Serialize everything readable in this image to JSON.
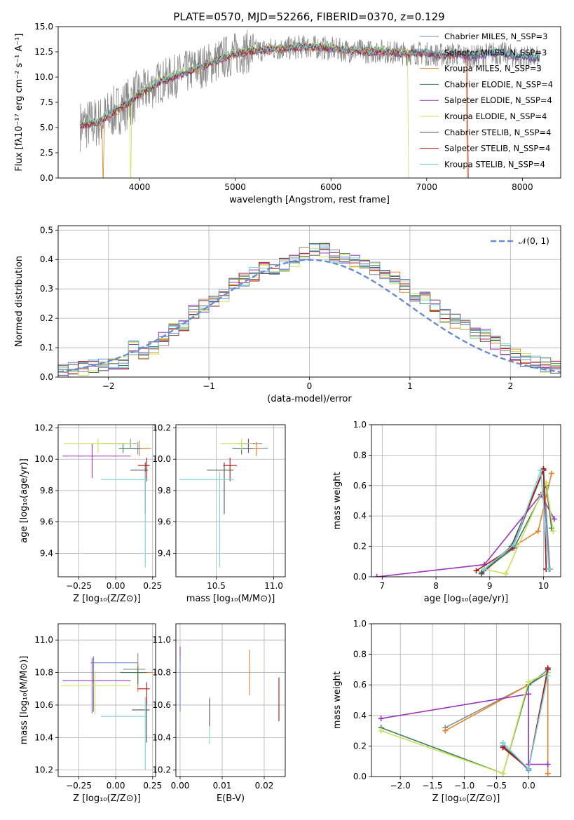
{
  "figure": {
    "title": "PLATE=0570, MJD=52266, FIBERID=0370, z=0.129"
  },
  "colors": [
    "#6a8bd3",
    "#8b8b8b",
    "#e0852b",
    "#3f7f5b",
    "#9b35b8",
    "#c8e35a",
    "#505050",
    "#b01717",
    "#79d4dc"
  ],
  "chart_data": [
    {
      "id": "spectrum",
      "type": "line",
      "title": "PLATE=0570, MJD=52266, FIBERID=0370, z=0.129",
      "xlabel": "wavelength [Angstrom, rest frame]",
      "ylabel": "Flux [fλ10⁻¹⁷ erg cm⁻² s⁻¹ A⁻¹]",
      "xlim": [
        3150,
        8400
      ],
      "ylim": [
        0,
        15
      ],
      "xticks": [
        4000,
        5000,
        6000,
        7000,
        8000
      ],
      "yticks": [
        0.0,
        2.5,
        5.0,
        7.5,
        10.0,
        12.5,
        15.0
      ],
      "grid": false,
      "legend_position": "right",
      "legend": [
        "Chabrier MILES, N_SSP=3",
        "Salpeter MILES, N_SSP=3",
        "Kroupa MILES, N_SSP=3",
        "Chabrier ELODIE, N_SSP=4",
        "Salpeter ELODIE, N_SSP=4",
        "Kroupa ELODIE, N_SSP=4",
        "Chabrier STELIB, N_SSP=4",
        "Salpeter STELIB, N_SSP=4",
        "Kroupa STELIB, N_SSP=4"
      ],
      "observed_envelope": {
        "x": [
          3380,
          3500,
          3600,
          3700,
          3800,
          3900,
          4000,
          4100,
          4200,
          4300,
          4400,
          4500,
          4600,
          4700,
          4800,
          4900,
          5000,
          5100,
          5200,
          5300,
          5400,
          5500,
          5600,
          5700,
          5800,
          5900,
          6000,
          6100,
          6200,
          6300,
          6400,
          6500,
          6600,
          6700,
          6800,
          6900,
          7000,
          7100,
          7200,
          7300,
          7400,
          7500,
          7600,
          7700,
          7800,
          7900,
          8000,
          8100,
          8180
        ],
        "y": [
          5.2,
          5.4,
          5.6,
          6.4,
          6.9,
          7.5,
          8.4,
          8.8,
          9.5,
          9.8,
          10.2,
          10.5,
          10.9,
          11.2,
          11.6,
          12.0,
          12.3,
          12.5,
          12.6,
          12.7,
          12.8,
          12.8,
          12.9,
          13.0,
          13.0,
          12.9,
          12.8,
          12.7,
          12.6,
          12.6,
          12.5,
          12.6,
          12.5,
          12.4,
          12.3,
          12.4,
          12.3,
          12.2,
          12.2,
          12.3,
          12.1,
          12.0,
          12.2,
          12.4,
          12.3,
          12.1,
          12.0,
          11.9,
          11.9
        ]
      }
    },
    {
      "id": "residuals",
      "type": "line",
      "xlabel": "(data-model)/error",
      "ylabel": "Normed distribution",
      "xlim": [
        -2.5,
        2.5
      ],
      "ylim": [
        0,
        0.515
      ],
      "xticks": [
        -2,
        -1,
        0,
        1,
        2
      ],
      "yticks": [
        0.0,
        0.1,
        0.2,
        0.3,
        0.4,
        0.5
      ],
      "grid": true,
      "legend_position": "top-right",
      "legend": [
        "𝒩(0, 1)"
      ],
      "bin_width": 0.1,
      "bin_start": -2.5,
      "bin_values": [
        0.02,
        0.025,
        0.03,
        0.04,
        0.045,
        0.05,
        0.05,
        0.1,
        0.08,
        0.1,
        0.13,
        0.16,
        0.18,
        0.22,
        0.24,
        0.26,
        0.28,
        0.32,
        0.33,
        0.35,
        0.37,
        0.36,
        0.38,
        0.39,
        0.42,
        0.43,
        0.43,
        0.41,
        0.4,
        0.39,
        0.38,
        0.37,
        0.35,
        0.34,
        0.31,
        0.27,
        0.27,
        0.24,
        0.21,
        0.19,
        0.18,
        0.15,
        0.14,
        0.12,
        0.1,
        0.08,
        0.06,
        0.05,
        0.04,
        0.035
      ]
    },
    {
      "id": "age-vs-Z",
      "type": "scatter",
      "xlabel": "Z [log₁₀(Z/Z⊙)]",
      "ylabel": "age  [log₁₀(age/yr)]",
      "xlim": [
        -0.39,
        0.27
      ],
      "ylim": [
        9.25,
        10.22
      ],
      "xticks": [
        -0.25,
        0.0,
        0.25
      ],
      "xtick_labels": [
        "−0.25",
        "0.00",
        "0.25"
      ],
      "yticks": [
        9.4,
        9.6,
        9.8,
        10.0,
        10.2
      ],
      "grid": true,
      "points": [
        {
          "x": 0.15,
          "y": 10.07,
          "xerr": [
            0.05,
            0.07
          ],
          "yerr": [
            0.04,
            0.04
          ],
          "color": 0
        },
        {
          "x": 0.1,
          "y": 10.1,
          "xerr": [
            0.2,
            0.04
          ],
          "yerr": [
            0.03,
            0.03
          ],
          "color": 1
        },
        {
          "x": 0.16,
          "y": 10.07,
          "xerr": [
            0.1,
            0.08
          ],
          "yerr": [
            0.05,
            0.05
          ],
          "color": 2
        },
        {
          "x": 0.05,
          "y": 10.07,
          "xerr": [
            0.03,
            0.12
          ],
          "yerr": [
            0.03,
            0.03
          ],
          "color": 3
        },
        {
          "x": -0.16,
          "y": 10.02,
          "xerr": [
            0.2,
            0.26
          ],
          "yerr": [
            0.14,
            0.08
          ],
          "color": 4
        },
        {
          "x": -0.12,
          "y": 10.1,
          "xerr": [
            0.23,
            0.24
          ],
          "yerr": [
            0.06,
            0.03
          ],
          "color": 5
        },
        {
          "x": 0.2,
          "y": 9.93,
          "xerr": [
            0.1,
            0.02
          ],
          "yerr": [
            0.28,
            0.05
          ],
          "color": 6
        },
        {
          "x": 0.21,
          "y": 9.96,
          "xerr": [
            0.06,
            0.02
          ],
          "yerr": [
            0.1,
            0.05
          ],
          "color": 7
        },
        {
          "x": 0.2,
          "y": 9.87,
          "xerr": [
            0.3,
            0.02
          ],
          "yerr": [
            0.56,
            0.05
          ],
          "color": 8
        }
      ]
    },
    {
      "id": "age-vs-mass",
      "type": "scatter",
      "xlabel": "mass [log₁₀(M/M⊙)]",
      "ylabel": "",
      "xlim": [
        10.15,
        11.1
      ],
      "ylim": [
        9.25,
        10.22
      ],
      "xticks": [
        10.5,
        11.0
      ],
      "yticks": [
        9.4,
        9.6,
        9.8,
        10.0,
        10.2
      ],
      "grid": true,
      "points": [
        {
          "x": 10.85,
          "y": 10.07,
          "xerr": [
            0.08,
            0.1
          ],
          "yerr": [
            0.04,
            0.04
          ],
          "color": 0
        },
        {
          "x": 10.78,
          "y": 10.1,
          "xerr": [
            0.1,
            0.12
          ],
          "yerr": [
            0.04,
            0.03
          ],
          "color": 1
        },
        {
          "x": 10.85,
          "y": 10.07,
          "xerr": [
            0.12,
            0.05
          ],
          "yerr": [
            0.05,
            0.04
          ],
          "color": 2
        },
        {
          "x": 10.72,
          "y": 10.07,
          "xerr": [
            0.08,
            0.1
          ],
          "yerr": [
            0.04,
            0.04
          ],
          "color": 3
        },
        {
          "x": 10.78,
          "y": 10.1,
          "xerr": [
            0.04,
            0.05
          ],
          "yerr": [
            0.06,
            0.03
          ],
          "color": 4
        },
        {
          "x": 10.72,
          "y": 10.1,
          "xerr": [
            0.18,
            0.1
          ],
          "yerr": [
            0.04,
            0.03
          ],
          "color": 5
        },
        {
          "x": 10.57,
          "y": 9.93,
          "xerr": [
            0.15,
            0.08
          ],
          "yerr": [
            0.28,
            0.05
          ],
          "color": 6
        },
        {
          "x": 10.62,
          "y": 9.96,
          "xerr": [
            0.06,
            0.06
          ],
          "yerr": [
            0.1,
            0.05
          ],
          "color": 7
        },
        {
          "x": 10.53,
          "y": 9.87,
          "xerr": [
            0.35,
            0.12
          ],
          "yerr": [
            0.56,
            0.05
          ],
          "color": 8
        }
      ]
    },
    {
      "id": "mass-weight-vs-age",
      "type": "line",
      "xlabel": "age  [log₁₀(age/yr)]",
      "ylabel": "mass weight",
      "xlim": [
        6.8,
        10.32
      ],
      "ylim": [
        0,
        1.0
      ],
      "xticks": [
        7,
        8,
        9,
        10
      ],
      "yticks": [
        0.0,
        0.2,
        0.4,
        0.6,
        0.8,
        1.0
      ],
      "grid": true,
      "series": [
        {
          "color": 0,
          "x": [
            8.9,
            9.4,
            10.0,
            10.1
          ],
          "y": [
            0.05,
            0.2,
            0.7,
            0.05
          ]
        },
        {
          "color": 1,
          "x": [
            8.9,
            9.45,
            10.0,
            10.12
          ],
          "y": [
            0.05,
            0.21,
            0.7,
            0.05
          ]
        },
        {
          "color": 2,
          "x": [
            8.85,
            9.45,
            9.9,
            10.15
          ],
          "y": [
            0.02,
            0.2,
            0.3,
            0.68
          ]
        },
        {
          "color": 3,
          "x": [
            8.85,
            9.45,
            10.05,
            10.15
          ],
          "y": [
            0.03,
            0.19,
            0.6,
            0.32
          ]
        },
        {
          "color": 4,
          "x": [
            6.9,
            8.9,
            9.95,
            10.2
          ],
          "y": [
            0.0,
            0.08,
            0.54,
            0.38
          ]
        },
        {
          "color": 5,
          "x": [
            8.9,
            9.3,
            10.05,
            10.18
          ],
          "y": [
            0.05,
            0.02,
            0.62,
            0.3
          ]
        },
        {
          "color": 6,
          "x": [
            8.85,
            9.4,
            10.0,
            10.05
          ],
          "y": [
            0.02,
            0.2,
            0.7,
            0.05
          ]
        },
        {
          "color": 7,
          "x": [
            8.75,
            9.42,
            10.0,
            10.05
          ],
          "y": [
            0.04,
            0.19,
            0.71,
            0.05
          ]
        },
        {
          "color": 8,
          "x": [
            8.9,
            9.45,
            9.95,
            10.1
          ],
          "y": [
            0.05,
            0.21,
            0.7,
            0.05
          ]
        }
      ]
    },
    {
      "id": "mass-vs-Z",
      "type": "scatter",
      "xlabel": "Z [log₁₀(Z/Z⊙)]",
      "ylabel": "mass [log₁₀(M/M⊙)]",
      "xlim": [
        -0.39,
        0.27
      ],
      "ylim": [
        10.16,
        11.1
      ],
      "xticks": [
        -0.25,
        0.0,
        0.25
      ],
      "xtick_labels": [
        "−0.25",
        "0.00",
        "0.25"
      ],
      "yticks": [
        10.2,
        10.4,
        10.6,
        10.8,
        11.0
      ],
      "grid": true,
      "points": [
        {
          "x": -0.15,
          "y": 10.86,
          "xerr": [
            0.02,
            0.3
          ],
          "yerr": [
            0.3,
            0.04
          ],
          "color": 0
        },
        {
          "x": 0.15,
          "y": 10.82,
          "xerr": [
            0.1,
            0.05
          ],
          "yerr": [
            0.1,
            0.1
          ],
          "color": 1
        },
        {
          "x": 0.15,
          "y": 10.8,
          "xerr": [
            0.04,
            0.1
          ],
          "yerr": [
            0.12,
            0.06
          ],
          "color": 2
        },
        {
          "x": 0.15,
          "y": 10.8,
          "xerr": [
            0.12,
            0.06
          ],
          "yerr": [
            0.07,
            0.04
          ],
          "color": 3
        },
        {
          "x": -0.16,
          "y": 10.75,
          "xerr": [
            0.2,
            0.26
          ],
          "yerr": [
            0.2,
            0.14
          ],
          "color": 4
        },
        {
          "x": -0.14,
          "y": 10.72,
          "xerr": [
            0.23,
            0.24
          ],
          "yerr": [
            0.18,
            0.09
          ],
          "color": 5
        },
        {
          "x": 0.21,
          "y": 10.57,
          "xerr": [
            0.1,
            0.02
          ],
          "yerr": [
            0.2,
            0.08
          ],
          "color": 6
        },
        {
          "x": 0.21,
          "y": 10.7,
          "xerr": [
            0.06,
            0.02
          ],
          "yerr": [
            0.1,
            0.04
          ],
          "color": 7
        },
        {
          "x": 0.2,
          "y": 10.53,
          "xerr": [
            0.3,
            0.01
          ],
          "yerr": [
            0.33,
            0.12
          ],
          "color": 8
        }
      ]
    },
    {
      "id": "mass-vs-EBV",
      "type": "scatter",
      "xlabel": "E(B-V)",
      "ylabel": "",
      "xlim": [
        -0.001,
        0.025
      ],
      "ylim": [
        10.16,
        11.1
      ],
      "xticks": [
        0.0,
        0.01,
        0.02
      ],
      "yticks": [
        10.2,
        10.4,
        10.6,
        10.8,
        11.0
      ],
      "grid": true,
      "points": [
        {
          "x": 0.0,
          "y": 10.88,
          "yerr": [
            0.02,
            0.08
          ],
          "color": 4
        },
        {
          "x": 0.0,
          "y": 10.75,
          "yerr": [
            0.2,
            0.15
          ],
          "color": 5
        },
        {
          "x": 0.0,
          "y": 10.86,
          "yerr": [
            0.3,
            0.04
          ],
          "color": 0
        },
        {
          "x": 0.007,
          "y": 10.53,
          "yerr": [
            0.17,
            0.12
          ],
          "color": 8
        },
        {
          "x": 0.007,
          "y": 10.57,
          "yerr": [
            0.1,
            0.07
          ],
          "color": 6
        },
        {
          "x": 0.0165,
          "y": 10.8,
          "yerr": [
            0.14,
            0.14
          ],
          "color": 2
        },
        {
          "x": 0.0235,
          "y": 10.64,
          "yerr": [
            0.14,
            0.13
          ],
          "color": 7
        }
      ]
    },
    {
      "id": "mass-weight-vs-Z",
      "type": "line",
      "xlabel": "Z [log₁₀(Z/Z⊙)]",
      "ylabel": "mass weight",
      "xlim": [
        -2.45,
        0.5
      ],
      "ylim": [
        0,
        1.0
      ],
      "xticks": [
        -2.0,
        -1.5,
        -1.0,
        -0.5,
        0.0
      ],
      "xtick_labels": [
        "−2.0",
        "−1.5",
        "−1.0",
        "−0.5",
        "0.0"
      ],
      "yticks": [
        0.0,
        0.2,
        0.4,
        0.6,
        0.8,
        1.0
      ],
      "grid": true,
      "series": [
        {
          "color": 0,
          "x": [
            -0.4,
            0.0,
            0.0,
            0.3
          ],
          "y": [
            0.22,
            0.04,
            0.6,
            0.7
          ]
        },
        {
          "color": 1,
          "x": [
            -1.3,
            0.0,
            0.3
          ],
          "y": [
            0.32,
            0.6,
            0.68
          ]
        },
        {
          "color": 2,
          "x": [
            -1.3,
            0.0,
            0.3,
            0.3
          ],
          "y": [
            0.3,
            0.6,
            0.68,
            0.02
          ]
        },
        {
          "color": 3,
          "x": [
            -2.3,
            -0.4,
            0.0,
            0.3
          ],
          "y": [
            0.32,
            0.02,
            0.6,
            0.68
          ]
        },
        {
          "color": 4,
          "x": [
            -2.3,
            0.0,
            0.0,
            0.3
          ],
          "y": [
            0.38,
            0.54,
            0.08,
            0.08
          ]
        },
        {
          "color": 5,
          "x": [
            -2.3,
            -0.4,
            0.0,
            0.3
          ],
          "y": [
            0.3,
            0.02,
            0.62,
            0.68
          ]
        },
        {
          "color": 6,
          "x": [
            -0.4,
            0.0,
            0.3
          ],
          "y": [
            0.2,
            0.05,
            0.7
          ]
        },
        {
          "color": 7,
          "x": [
            -0.4,
            0.0,
            0.3
          ],
          "y": [
            0.19,
            0.05,
            0.71
          ]
        },
        {
          "color": 8,
          "x": [
            -0.4,
            0.0,
            0.3
          ],
          "y": [
            0.22,
            0.05,
            0.66
          ]
        }
      ]
    }
  ]
}
